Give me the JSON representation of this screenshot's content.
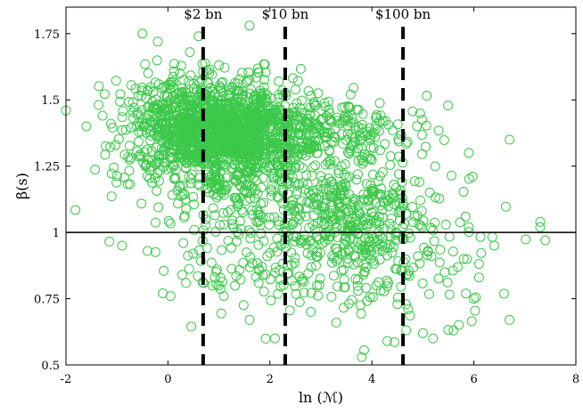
{
  "chart_data": {
    "type": "scatter",
    "title": "",
    "xlabel": "ln (ℳ)",
    "ylabel": "β(s)",
    "xlim": [
      -2,
      8
    ],
    "ylim": [
      0.5,
      1.85
    ],
    "x_ticks": [
      -2,
      0,
      2,
      4,
      6,
      8
    ],
    "x_tick_labels": [
      "-2",
      "0",
      "2",
      "4",
      "6",
      "8"
    ],
    "y_ticks": [
      0.5,
      0.75,
      1,
      1.25,
      1.5,
      1.75
    ],
    "y_tick_labels": [
      "0.5",
      "0.75",
      "1",
      "1.25",
      "1.5",
      "1.75"
    ],
    "grid": false,
    "marker_color": "#3cc84a",
    "reference_line": {
      "y": 1,
      "color": "#000000"
    },
    "vlines": [
      {
        "x": 0.69,
        "label": "$2 bn"
      },
      {
        "x": 2.3,
        "label": "$10 bn"
      },
      {
        "x": 4.61,
        "label": "$100 bn"
      }
    ],
    "clusters": [
      {
        "cx": 0.6,
        "cy": 1.4,
        "sx": 0.75,
        "sy": 0.09,
        "n": 900
      },
      {
        "cx": 1.6,
        "cy": 1.38,
        "sx": 0.6,
        "sy": 0.09,
        "n": 500
      },
      {
        "cx": 3.3,
        "cy": 1.38,
        "sx": 0.9,
        "sy": 0.06,
        "n": 220
      },
      {
        "cx": 3.5,
        "cy": 1.08,
        "sx": 1.0,
        "sy": 0.1,
        "n": 380
      },
      {
        "cx": 1.3,
        "cy": 1.2,
        "sx": 0.9,
        "sy": 0.12,
        "n": 260
      },
      {
        "cx": 3.7,
        "cy": 0.86,
        "sx": 1.2,
        "sy": 0.1,
        "n": 170
      },
      {
        "cx": 1.5,
        "cy": 0.88,
        "sx": 0.8,
        "sy": 0.1,
        "n": 60
      }
    ],
    "outliers": [
      [
        -0.5,
        1.75
      ],
      [
        1.6,
        1.78
      ],
      [
        0.6,
        1.74
      ],
      [
        -0.2,
        1.72
      ],
      [
        -2.0,
        1.46
      ],
      [
        -1.6,
        1.4
      ],
      [
        -0.9,
        0.95
      ],
      [
        -0.4,
        0.93
      ],
      [
        0.05,
        0.76
      ],
      [
        0.3,
        0.96
      ],
      [
        7.3,
        1.04
      ],
      [
        7.3,
        1.02
      ],
      [
        7.4,
        0.97
      ],
      [
        6.7,
        1.35
      ],
      [
        5.9,
        1.3
      ],
      [
        6.7,
        0.67
      ],
      [
        6.0,
        0.75
      ],
      [
        6.1,
        0.83
      ],
      [
        5.6,
        0.63
      ],
      [
        5.8,
        0.9
      ],
      [
        3.8,
        0.53
      ],
      [
        5.0,
        0.62
      ],
      [
        5.2,
        0.6
      ],
      [
        4.3,
        0.59
      ],
      [
        2.1,
        0.6
      ],
      [
        1.6,
        0.67
      ],
      [
        2.8,
        0.7
      ],
      [
        3.3,
        0.66
      ],
      [
        6.4,
        0.95
      ],
      [
        5.9,
        1.02
      ]
    ]
  }
}
